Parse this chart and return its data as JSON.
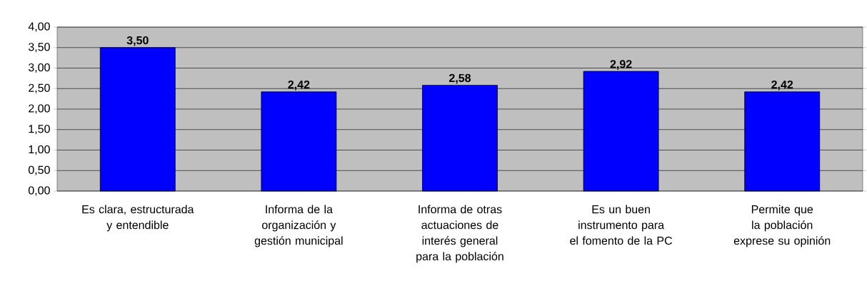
{
  "chart_data": {
    "type": "bar",
    "categories": [
      "Es clara, estructurada y entendible",
      "Informa de la organización y gestión municipal",
      "Informa de otras actuaciones de interés general para la población",
      "Es un buen instrumento para el fomento de la PC",
      "Permite que la población exprese su opinión"
    ],
    "values": [
      3.5,
      2.42,
      2.58,
      2.92,
      2.42
    ],
    "value_labels": [
      "3,50",
      "2,42",
      "2,58",
      "2,92",
      "2,42"
    ],
    "color": "#0000ff",
    "ylim": [
      0,
      4
    ],
    "yticks": [
      {
        "value": 0,
        "label": "0,00"
      },
      {
        "value": 0.5,
        "label": "0,50"
      },
      {
        "value": 1,
        "label": "1,00"
      },
      {
        "value": 1.5,
        "label": "1,50"
      },
      {
        "value": 2,
        "label": "2,00"
      },
      {
        "value": 2.5,
        "label": "2,50"
      },
      {
        "value": 3,
        "label": "3,00"
      },
      {
        "value": 3.5,
        "label": "3,50"
      },
      {
        "value": 4,
        "label": "4,00"
      }
    ],
    "grid": "y"
  }
}
